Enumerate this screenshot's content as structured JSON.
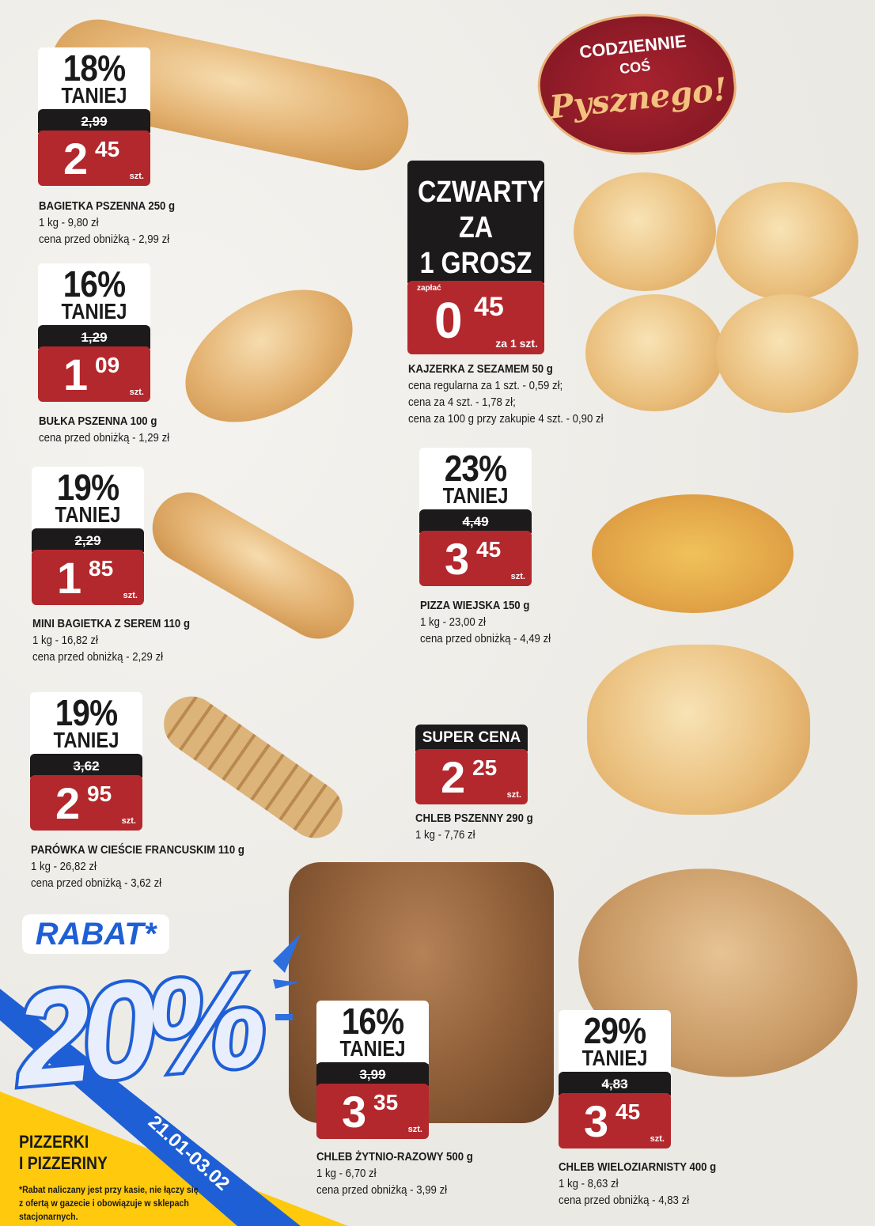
{
  "colors": {
    "price_red": "#b3282d",
    "label_black": "#1c1a1a",
    "promo_blue": "#1f5fd6",
    "promo_yellow": "#ffc90d",
    "logo_maroon": "#8e1b26"
  },
  "logo": {
    "line1": "CODZIENNIE",
    "line2": "COŚ",
    "line3": "Pysznego!"
  },
  "products": [
    {
      "discount": "18%",
      "label": "TANIEJ",
      "old_price": "2,99",
      "price_main": "2",
      "price_cents": "45",
      "unit": "szt.",
      "name": "BAGIETKA PSZENNA 250 g",
      "lines": [
        "1 kg - 9,80 zł",
        "cena przed obniżką - 2,99 zł"
      ]
    },
    {
      "discount": "16%",
      "label": "TANIEJ",
      "old_price": "1,29",
      "price_main": "1",
      "price_cents": "09",
      "unit": "szt.",
      "name": "BUŁKA PSZENNA 100 g",
      "lines": [
        "cena przed obniżką - 1,29 zł"
      ]
    },
    {
      "discount": "19%",
      "label": "TANIEJ",
      "old_price": "2,29",
      "price_main": "1",
      "price_cents": "85",
      "unit": "szt.",
      "name": "MINI BAGIETKA Z SEREM 110 g",
      "lines": [
        "1 kg - 16,82 zł",
        "cena przed obniżką - 2,29 zł"
      ]
    },
    {
      "discount": "19%",
      "label": "TANIEJ",
      "old_price": "3,62",
      "price_main": "2",
      "price_cents": "95",
      "unit": "szt.",
      "name": "PARÓWKA W CIEŚCIE FRANCUSKIM 110 g",
      "lines": [
        "1 kg - 26,82 zł",
        "cena przed obniżką - 3,62 zł"
      ]
    },
    {
      "discount": "23%",
      "label": "TANIEJ",
      "old_price": "4,49",
      "price_main": "3",
      "price_cents": "45",
      "unit": "szt.",
      "name": "PIZZA WIEJSKA 150 g",
      "lines": [
        "1 kg - 23,00 zł",
        "cena przed obniżką - 4,49 zł"
      ]
    },
    {
      "discount": "16%",
      "label": "TANIEJ",
      "old_price": "3,99",
      "price_main": "3",
      "price_cents": "35",
      "unit": "szt.",
      "name": "CHLEB ŻYTNIO-RAZOWY 500 g",
      "lines": [
        "1 kg - 6,70 zł",
        "cena przed obniżką - 3,99 zł"
      ]
    },
    {
      "discount": "29%",
      "label": "TANIEJ",
      "old_price": "4,83",
      "price_main": "3",
      "price_cents": "45",
      "unit": "szt.",
      "name": "CHLEB WIELOZIARNISTY 400 g",
      "lines": [
        "1 kg - 8,63 zł",
        "cena przed obniżką - 4,83 zł"
      ]
    }
  ],
  "kajzerka": {
    "promo": [
      "CZWARTY",
      "ZA",
      "1 GROSZ"
    ],
    "pay_label": "zapłać",
    "price_main": "0",
    "price_cents": "45",
    "unit": "za 1 szt.",
    "name": "KAJZERKA Z SEZAMEM 50 g",
    "lines": [
      "cena regularna za 1 szt. - 0,59 zł;",
      "cena za 4 szt. - 1,78 zł;",
      "cena za 100 g przy zakupie 4 szt. - 0,90 zł"
    ]
  },
  "chleb_pszenny": {
    "badge": "SUPER CENA",
    "price_main": "2",
    "price_cents": "25",
    "unit": "szt.",
    "name": "CHLEB PSZENNY 290 g",
    "lines": [
      "1 kg - 7,76 zł"
    ]
  },
  "rabat": {
    "title": "RABAT*",
    "value": "20%",
    "dates": "21.01-03.02",
    "category": [
      "PIZZERKI",
      "I PIZZERINY"
    ],
    "footnote": [
      "*Rabat naliczany jest przy kasie, nie łączy się",
      "z ofertą w gazecie i obowiązuje w sklepach",
      "stacjonarnych."
    ]
  }
}
